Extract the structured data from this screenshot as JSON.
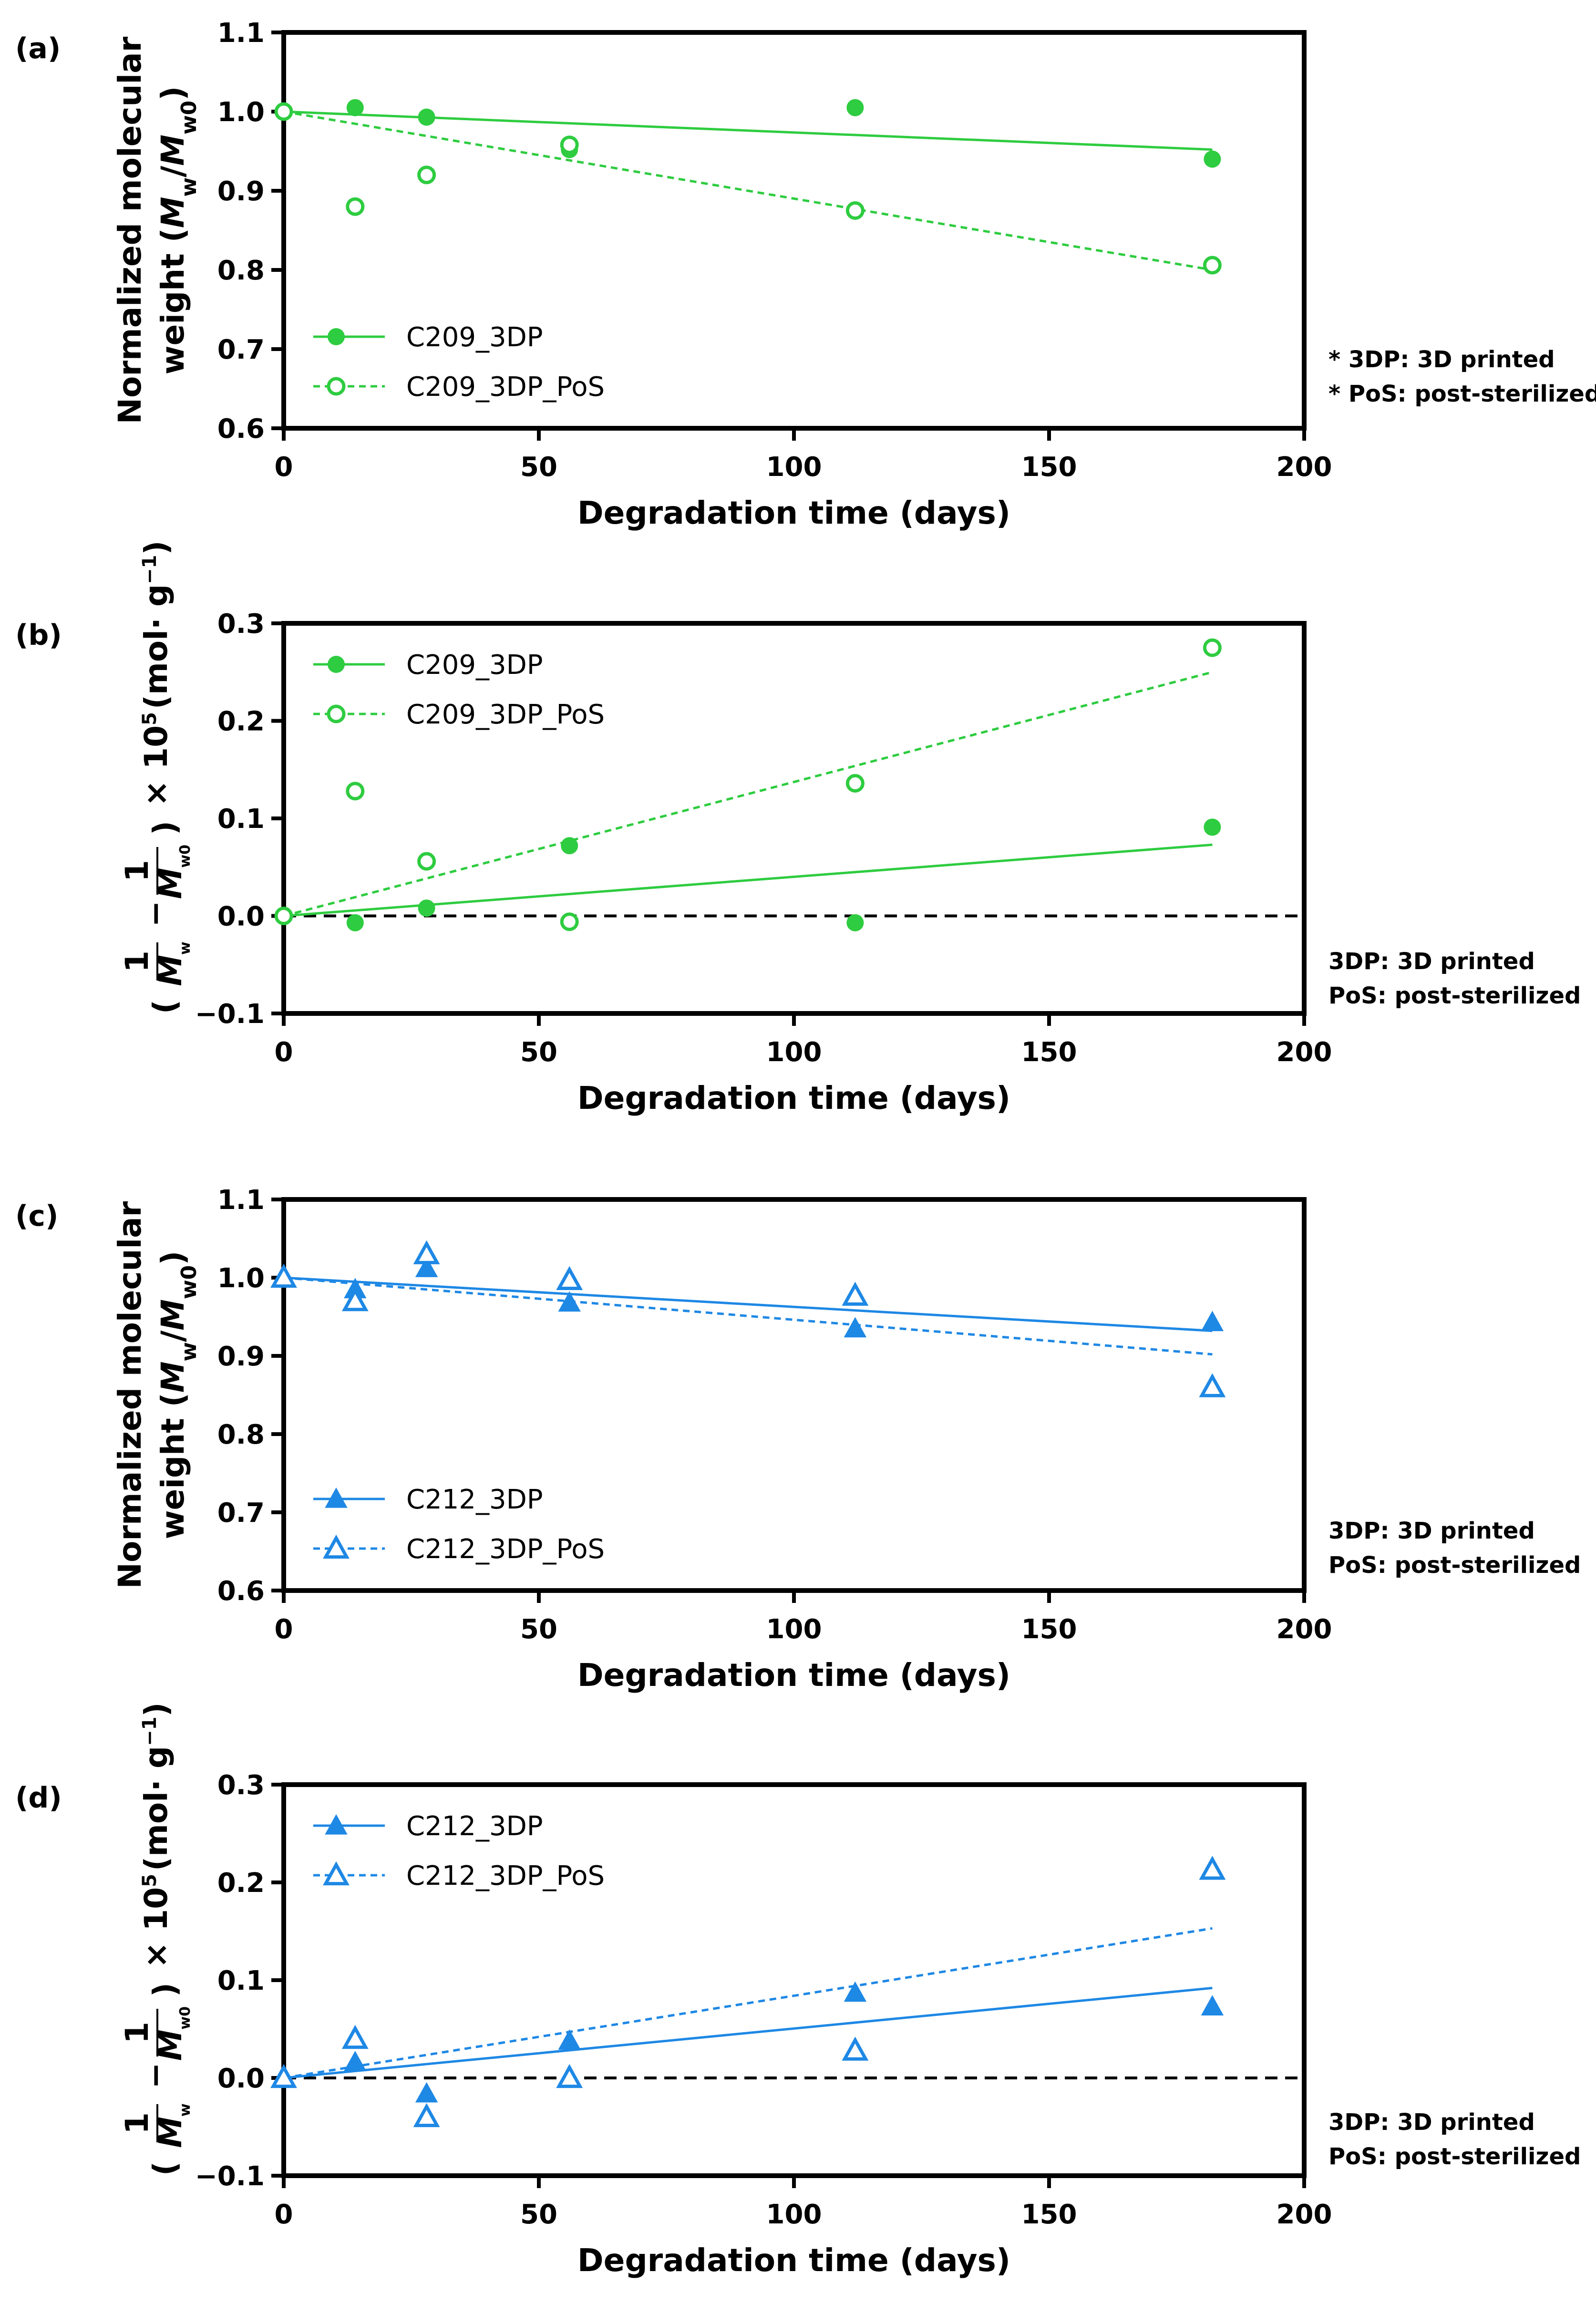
{
  "chart_data": [
    {
      "panel": "(a)",
      "type": "scatter",
      "xlabel": "Degradation time (days)",
      "ylabel_lines": [
        "Normalized molecular",
        "weight (Mw/Mw0)"
      ],
      "ylabel_parts": {
        "prefix": "weight (",
        "m1": "M",
        "s1": "w",
        "slash": "/",
        "m2": "M",
        "s2": "w0",
        "suffix": ")"
      },
      "xlim": [
        0,
        200
      ],
      "ylim": [
        0.6,
        1.1
      ],
      "x_ticks": [
        0,
        50,
        100,
        150,
        200
      ],
      "x_tick_labels": [
        "0",
        "50",
        "100",
        "150",
        "200"
      ],
      "y_ticks": [
        0.6,
        0.7,
        0.8,
        0.9,
        1.0,
        1.1
      ],
      "y_tick_labels": [
        "0.6",
        "0.7",
        "0.8",
        "0.9",
        "1.0",
        "1.1"
      ],
      "zero_line": false,
      "legend_position": "bottom-left",
      "notes": [
        "* 3DP: 3D printed",
        "* PoS: post-sterilized"
      ],
      "series": [
        {
          "name": "C209_3DP",
          "marker": "circle",
          "filled": true,
          "color": "#2ecc40",
          "dashed": false,
          "x": [
            0,
            14,
            28,
            56,
            112,
            182
          ],
          "y": [
            1.0,
            1.005,
            0.993,
            0.952,
            1.005,
            0.94
          ],
          "fit": {
            "x": [
              0,
              182
            ],
            "y": [
              1.0,
              0.952
            ]
          }
        },
        {
          "name": "C209_3DP_PoS",
          "marker": "circle",
          "filled": false,
          "color": "#2ecc40",
          "dashed": true,
          "x": [
            0,
            14,
            28,
            56,
            112,
            182
          ],
          "y": [
            1.0,
            0.88,
            0.92,
            0.958,
            0.875,
            0.806
          ],
          "fit": {
            "x": [
              0,
              182
            ],
            "y": [
              1.0,
              0.8
            ]
          }
        }
      ]
    },
    {
      "panel": "(b)",
      "type": "scatter",
      "xlabel": "Degradation time (days)",
      "ylabel_math": {
        "num1": "1",
        "den1": "M",
        "den1_sub": "w",
        "minus": "−",
        "num2": "1",
        "den2": "M",
        "den2_sub": "w0",
        "times": "× 10",
        "exp": "5",
        "unit": "(mol· g",
        "unit_exp": "−1",
        "unit_close": ")"
      },
      "xlim": [
        0,
        200
      ],
      "ylim": [
        -0.1,
        0.3
      ],
      "x_ticks": [
        0,
        50,
        100,
        150,
        200
      ],
      "x_tick_labels": [
        "0",
        "50",
        "100",
        "150",
        "200"
      ],
      "y_ticks": [
        -0.1,
        0.0,
        0.1,
        0.2,
        0.3
      ],
      "y_tick_labels": [
        "−0.1",
        "0.0",
        "0.1",
        "0.2",
        "0.3"
      ],
      "zero_line": true,
      "legend_position": "top-left",
      "notes": [
        "3DP: 3D printed",
        "PoS: post-sterilized"
      ],
      "series": [
        {
          "name": "C209_3DP",
          "marker": "circle",
          "filled": true,
          "color": "#2ecc40",
          "dashed": false,
          "x": [
            0,
            14,
            28,
            56,
            112,
            182
          ],
          "y": [
            0.0,
            -0.007,
            0.008,
            0.072,
            -0.007,
            0.091
          ],
          "fit": {
            "x": [
              0,
              182
            ],
            "y": [
              0.0,
              0.073
            ]
          }
        },
        {
          "name": "C209_3DP_PoS",
          "marker": "circle",
          "filled": false,
          "color": "#2ecc40",
          "dashed": true,
          "x": [
            0,
            14,
            28,
            56,
            112,
            182
          ],
          "y": [
            0.0,
            0.128,
            0.056,
            -0.006,
            0.136,
            0.275
          ],
          "fit": {
            "x": [
              0,
              182
            ],
            "y": [
              0.0,
              0.25
            ]
          }
        }
      ]
    },
    {
      "panel": "(c)",
      "type": "scatter",
      "xlabel": "Degradation time (days)",
      "ylabel_lines": [
        "Normalized molecular",
        "weight (Mw/Mw0)"
      ],
      "ylabel_parts": {
        "prefix": "weight (",
        "m1": "M",
        "s1": "w",
        "slash": "/",
        "m2": "M",
        "s2": "w0",
        "suffix": ")"
      },
      "xlim": [
        0,
        200
      ],
      "ylim": [
        0.6,
        1.1
      ],
      "x_ticks": [
        0,
        50,
        100,
        150,
        200
      ],
      "x_tick_labels": [
        "0",
        "50",
        "100",
        "150",
        "200"
      ],
      "y_ticks": [
        0.6,
        0.7,
        0.8,
        0.9,
        1.0,
        1.1
      ],
      "y_tick_labels": [
        "0.6",
        "0.7",
        "0.8",
        "0.9",
        "1.0",
        "1.1"
      ],
      "zero_line": false,
      "legend_position": "bottom-left",
      "notes": [
        "3DP: 3D printed",
        "PoS: post-sterilized"
      ],
      "series": [
        {
          "name": "C212_3DP",
          "marker": "triangle",
          "filled": true,
          "color": "#1e88e5",
          "dashed": false,
          "x": [
            0,
            14,
            28,
            56,
            112,
            182
          ],
          "y": [
            1.0,
            0.985,
            1.012,
            0.968,
            0.935,
            0.943
          ],
          "fit": {
            "x": [
              0,
              182
            ],
            "y": [
              1.0,
              0.932
            ]
          }
        },
        {
          "name": "C212_3DP_PoS",
          "marker": "triangle",
          "filled": false,
          "color": "#1e88e5",
          "dashed": true,
          "x": [
            0,
            14,
            28,
            56,
            112,
            182
          ],
          "y": [
            1.0,
            0.97,
            1.03,
            0.997,
            0.977,
            0.86
          ],
          "fit": {
            "x": [
              0,
              182
            ],
            "y": [
              1.0,
              0.902
            ]
          }
        }
      ]
    },
    {
      "panel": "(d)",
      "type": "scatter",
      "xlabel": "Degradation time (days)",
      "ylabel_math": {
        "num1": "1",
        "den1": "M",
        "den1_sub": "w",
        "minus": "−",
        "num2": "1",
        "den2": "M",
        "den2_sub": "w0",
        "times": "× 10",
        "exp": "5",
        "unit": "(mol· g",
        "unit_exp": "−1",
        "unit_close": ")"
      },
      "xlim": [
        0,
        200
      ],
      "ylim": [
        -0.1,
        0.3
      ],
      "x_ticks": [
        0,
        50,
        100,
        150,
        200
      ],
      "x_tick_labels": [
        "0",
        "50",
        "100",
        "150",
        "200"
      ],
      "y_ticks": [
        -0.1,
        0.0,
        0.1,
        0.2,
        0.3
      ],
      "y_tick_labels": [
        "−0.1",
        "0.0",
        "0.1",
        "0.2",
        "0.3"
      ],
      "zero_line": true,
      "legend_position": "top-left",
      "notes": [
        "3DP: 3D printed",
        "PoS: post-sterilized"
      ],
      "series": [
        {
          "name": "C212_3DP",
          "marker": "triangle",
          "filled": true,
          "color": "#1e88e5",
          "dashed": false,
          "x": [
            0,
            14,
            28,
            56,
            112,
            182
          ],
          "y": [
            0.0,
            0.016,
            -0.016,
            0.038,
            0.087,
            0.073
          ],
          "fit": {
            "x": [
              0,
              182
            ],
            "y": [
              0.0,
              0.092
            ]
          }
        },
        {
          "name": "C212_3DP_PoS",
          "marker": "triangle",
          "filled": false,
          "color": "#1e88e5",
          "dashed": true,
          "x": [
            0,
            14,
            28,
            56,
            112,
            182
          ],
          "y": [
            0.0,
            0.04,
            -0.04,
            0.0,
            0.028,
            0.213
          ],
          "fit": {
            "x": [
              0,
              182
            ],
            "y": [
              0.0,
              0.153
            ]
          }
        }
      ]
    }
  ]
}
